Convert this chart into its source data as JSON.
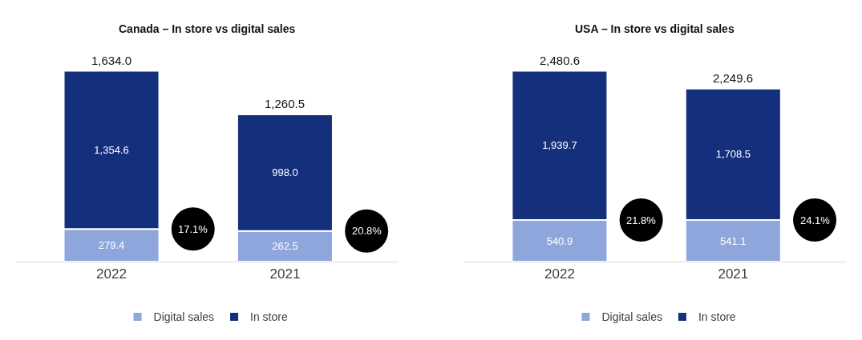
{
  "chart_data": [
    {
      "type": "bar",
      "title": "Canada – In store vs digital sales",
      "categories": [
        "2022",
        "2021"
      ],
      "stacked": true,
      "legend": "bottom",
      "series": [
        {
          "name": "Digital sales",
          "color": "#8fa6dc",
          "values": [
            279.4,
            262.5
          ],
          "value_labels": [
            "279.4",
            "262.5"
          ]
        },
        {
          "name": "In store",
          "color": "#142f7c",
          "values": [
            1354.6,
            998.0
          ],
          "value_labels": [
            "1,354.6",
            "998.0"
          ]
        }
      ],
      "totals": [
        "1,634.0",
        "1,260.5"
      ],
      "annotations": [
        "17.1%",
        "20.8%"
      ]
    },
    {
      "type": "bar",
      "title": "USA – In store vs digital sales",
      "categories": [
        "2022",
        "2021"
      ],
      "stacked": true,
      "legend": "bottom",
      "series": [
        {
          "name": "Digital sales",
          "color": "#8fa6dc",
          "values": [
            540.9,
            541.1
          ],
          "value_labels": [
            "540.9",
            "541.1"
          ]
        },
        {
          "name": "In store",
          "color": "#142f7c",
          "values": [
            1939.7,
            1708.5
          ],
          "value_labels": [
            "1,939.7",
            "1,708.5"
          ]
        }
      ],
      "totals": [
        "2,480.6",
        "2,249.6"
      ],
      "annotations": [
        "21.8%",
        "24.1%"
      ]
    }
  ]
}
